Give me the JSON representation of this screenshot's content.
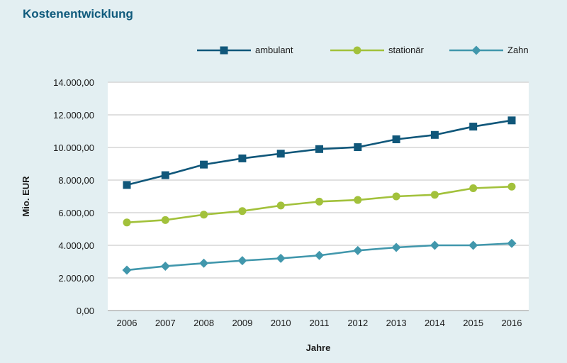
{
  "chart_data": {
    "type": "line",
    "title": "Kostenentwicklung",
    "xlabel": "Jahre",
    "ylabel": "Mio. EUR",
    "categories": [
      "2006",
      "2007",
      "2008",
      "2009",
      "2010",
      "2011",
      "2012",
      "2013",
      "2014",
      "2015",
      "2016"
    ],
    "ylim": [
      0,
      14000
    ],
    "yticks": [
      0,
      2000,
      4000,
      6000,
      8000,
      10000,
      12000,
      14000
    ],
    "ytick_labels": [
      "0,00",
      "2.000,00",
      "4.000,00",
      "6.000,00",
      "8.000,00",
      "10.000,00",
      "12.000,00",
      "14.000,00"
    ],
    "grid": "horizontal",
    "legend_position": "top-right",
    "series": [
      {
        "name": "ambulant",
        "color": "#10577a",
        "marker": "square",
        "values": [
          7700,
          8300,
          8950,
          9330,
          9620,
          9900,
          10020,
          10500,
          10770,
          11280,
          11660
        ]
      },
      {
        "name": "stationär",
        "color": "#a2c13b",
        "marker": "circle",
        "values": [
          5400,
          5550,
          5880,
          6100,
          6440,
          6680,
          6780,
          7000,
          7100,
          7500,
          7600
        ]
      },
      {
        "name": "Zahn",
        "color": "#4197ac",
        "marker": "diamond",
        "values": [
          2480,
          2720,
          2900,
          3060,
          3200,
          3380,
          3680,
          3870,
          4000,
          4000,
          4120
        ]
      }
    ]
  }
}
